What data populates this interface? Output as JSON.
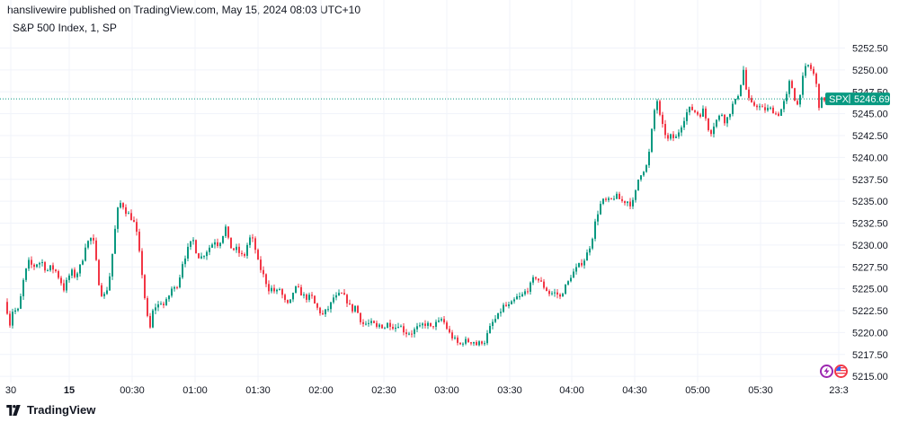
{
  "header": {
    "publish_line": "hanslivewire published on TradingView.com, May 15, 2024 08:03 UTC+10"
  },
  "legend": {
    "symbol_line": "S&P 500 Index, 1, SP"
  },
  "footer": {
    "brand": "TradingView"
  },
  "price_tag": {
    "symbol": "SPX",
    "value": "5246.69",
    "color": "#089981"
  },
  "colors": {
    "up": "#089981",
    "down": "#f23645",
    "grid": "#f0f3fa",
    "last_price_line": "#089981"
  },
  "chart_data": {
    "type": "candlestick",
    "title": "S&P 500 Index, 1, SP",
    "ylim": [
      5214.5,
      5254.5
    ],
    "y_ticks": [
      "5215.00",
      "5217.50",
      "5220.00",
      "5222.50",
      "5225.00",
      "5227.50",
      "5230.00",
      "5232.50",
      "5235.00",
      "5237.50",
      "5240.00",
      "5242.50",
      "5245.00",
      "5247.50",
      "5250.00",
      "5252.50"
    ],
    "x_ticks": [
      "30",
      "15",
      "00:30",
      "01:00",
      "01:30",
      "02:00",
      "02:30",
      "03:00",
      "03:30",
      "04:00",
      "04:30",
      "05:00",
      "05:30",
      "23:3"
    ],
    "last_price": 5246.69,
    "path": [
      [
        0,
        5221.5
      ],
      [
        4,
        5224.5
      ],
      [
        10,
        5223
      ],
      [
        14,
        5221
      ],
      [
        18,
        5223
      ],
      [
        22,
        5222
      ],
      [
        26,
        5224
      ],
      [
        30,
        5226.5
      ],
      [
        35,
        5228
      ],
      [
        40,
        5227.5
      ],
      [
        45,
        5228
      ],
      [
        50,
        5228
      ],
      [
        55,
        5227
      ],
      [
        60,
        5227.5
      ],
      [
        65,
        5227
      ],
      [
        70,
        5226
      ],
      [
        74,
        5225
      ],
      [
        78,
        5226
      ],
      [
        82,
        5227
      ],
      [
        86,
        5226.5
      ],
      [
        90,
        5227
      ],
      [
        94,
        5228
      ],
      [
        98,
        5230
      ],
      [
        102,
        5230.5
      ],
      [
        106,
        5231
      ],
      [
        110,
        5228
      ],
      [
        114,
        5225
      ],
      [
        118,
        5224
      ],
      [
        122,
        5225
      ],
      [
        126,
        5227
      ],
      [
        130,
        5231
      ],
      [
        134,
        5234
      ],
      [
        138,
        5235
      ],
      [
        142,
        5234
      ],
      [
        146,
        5233.5
      ],
      [
        150,
        5233
      ],
      [
        154,
        5232
      ],
      [
        158,
        5229
      ],
      [
        162,
        5226
      ],
      [
        166,
        5222
      ],
      [
        170,
        5220.5
      ],
      [
        174,
        5223
      ],
      [
        178,
        5223
      ],
      [
        182,
        5223.5
      ],
      [
        186,
        5223
      ],
      [
        190,
        5224
      ],
      [
        194,
        5225
      ],
      [
        198,
        5225
      ],
      [
        202,
        5226
      ],
      [
        206,
        5228
      ],
      [
        210,
        5229
      ],
      [
        214,
        5230
      ],
      [
        218,
        5230.5
      ],
      [
        222,
        5229
      ],
      [
        226,
        5228.5
      ],
      [
        230,
        5229
      ],
      [
        234,
        5229.5
      ],
      [
        238,
        5230
      ],
      [
        242,
        5230.5
      ],
      [
        246,
        5230
      ],
      [
        250,
        5231
      ],
      [
        254,
        5232
      ],
      [
        258,
        5230
      ],
      [
        262,
        5229.5
      ],
      [
        266,
        5229.5
      ],
      [
        270,
        5229
      ],
      [
        274,
        5228.5
      ],
      [
        278,
        5230
      ],
      [
        282,
        5231
      ],
      [
        286,
        5230
      ],
      [
        290,
        5228
      ],
      [
        294,
        5227
      ],
      [
        298,
        5226
      ],
      [
        302,
        5225
      ],
      [
        306,
        5225
      ],
      [
        310,
        5224.5
      ],
      [
        314,
        5225
      ],
      [
        318,
        5224
      ],
      [
        322,
        5223
      ],
      [
        326,
        5223.5
      ],
      [
        330,
        5225
      ],
      [
        334,
        5225
      ],
      [
        338,
        5224.5
      ],
      [
        342,
        5224
      ],
      [
        346,
        5224
      ],
      [
        350,
        5224
      ],
      [
        354,
        5223
      ],
      [
        358,
        5222.5
      ],
      [
        362,
        5222
      ],
      [
        366,
        5222.5
      ],
      [
        370,
        5223
      ],
      [
        374,
        5224
      ],
      [
        378,
        5224
      ],
      [
        382,
        5224.5
      ],
      [
        386,
        5224
      ],
      [
        390,
        5223.5
      ],
      [
        394,
        5222.5
      ],
      [
        398,
        5223
      ],
      [
        402,
        5222
      ],
      [
        406,
        5221
      ],
      [
        410,
        5221
      ],
      [
        414,
        5221
      ],
      [
        418,
        5221
      ],
      [
        422,
        5220.5
      ],
      [
        426,
        5221
      ],
      [
        430,
        5220.5
      ],
      [
        434,
        5221
      ],
      [
        438,
        5221
      ],
      [
        442,
        5220.5
      ],
      [
        446,
        5221
      ],
      [
        450,
        5220.5
      ],
      [
        454,
        5220
      ],
      [
        458,
        5220
      ],
      [
        462,
        5220
      ],
      [
        466,
        5220.5
      ],
      [
        470,
        5220.5
      ],
      [
        474,
        5221
      ],
      [
        478,
        5221
      ],
      [
        482,
        5220.5
      ],
      [
        486,
        5221
      ],
      [
        490,
        5221
      ],
      [
        494,
        5221.5
      ],
      [
        498,
        5221
      ],
      [
        502,
        5220
      ],
      [
        506,
        5219.5
      ],
      [
        510,
        5219
      ],
      [
        514,
        5218.5
      ],
      [
        518,
        5219
      ],
      [
        522,
        5219
      ],
      [
        526,
        5219
      ],
      [
        530,
        5219
      ],
      [
        534,
        5218.5
      ],
      [
        538,
        5219
      ],
      [
        542,
        5219
      ],
      [
        546,
        5220
      ],
      [
        550,
        5221
      ],
      [
        554,
        5221.5
      ],
      [
        558,
        5222
      ],
      [
        562,
        5223
      ],
      [
        566,
        5223
      ],
      [
        570,
        5223
      ],
      [
        574,
        5223.5
      ],
      [
        578,
        5224
      ],
      [
        582,
        5224
      ],
      [
        586,
        5224.5
      ],
      [
        590,
        5225
      ],
      [
        594,
        5225.5
      ],
      [
        598,
        5226.5
      ],
      [
        602,
        5226
      ],
      [
        606,
        5225.5
      ],
      [
        610,
        5225
      ],
      [
        614,
        5224.5
      ],
      [
        618,
        5224.5
      ],
      [
        622,
        5224.5
      ],
      [
        626,
        5224
      ],
      [
        630,
        5225
      ],
      [
        634,
        5225.5
      ],
      [
        638,
        5226.5
      ],
      [
        642,
        5227
      ],
      [
        646,
        5227.5
      ],
      [
        650,
        5228
      ],
      [
        654,
        5228.5
      ],
      [
        658,
        5229.5
      ],
      [
        662,
        5231
      ],
      [
        666,
        5233
      ],
      [
        670,
        5234.5
      ],
      [
        674,
        5235
      ],
      [
        678,
        5235
      ],
      [
        682,
        5235
      ],
      [
        686,
        5235.5
      ],
      [
        690,
        5235.5
      ],
      [
        694,
        5235
      ],
      [
        698,
        5235
      ],
      [
        702,
        5235
      ],
      [
        706,
        5234.5
      ],
      [
        710,
        5236
      ],
      [
        714,
        5238
      ],
      [
        718,
        5238.5
      ],
      [
        722,
        5239
      ],
      [
        726,
        5241
      ],
      [
        730,
        5245
      ],
      [
        734,
        5246.5
      ],
      [
        738,
        5244
      ],
      [
        742,
        5243
      ],
      [
        746,
        5242
      ],
      [
        750,
        5242.5
      ],
      [
        754,
        5242
      ],
      [
        758,
        5243
      ],
      [
        762,
        5244
      ],
      [
        766,
        5245
      ],
      [
        770,
        5245.5
      ],
      [
        774,
        5245.5
      ],
      [
        778,
        5245
      ],
      [
        782,
        5245
      ],
      [
        786,
        5245.5
      ],
      [
        790,
        5243.5
      ],
      [
        794,
        5243
      ],
      [
        798,
        5244
      ],
      [
        802,
        5244.5
      ],
      [
        806,
        5245
      ],
      [
        810,
        5244
      ],
      [
        814,
        5245
      ],
      [
        818,
        5246
      ],
      [
        822,
        5246.5
      ],
      [
        826,
        5248
      ],
      [
        830,
        5250
      ],
      [
        834,
        5247
      ],
      [
        838,
        5246
      ],
      [
        842,
        5246
      ],
      [
        846,
        5246
      ],
      [
        850,
        5245.5
      ],
      [
        854,
        5245.5
      ],
      [
        858,
        5245.5
      ],
      [
        862,
        5245.5
      ],
      [
        866,
        5245
      ],
      [
        870,
        5245
      ],
      [
        874,
        5246
      ],
      [
        878,
        5247
      ],
      [
        882,
        5249
      ],
      [
        886,
        5247
      ],
      [
        890,
        5246
      ],
      [
        894,
        5248
      ],
      [
        898,
        5250
      ],
      [
        902,
        5250.5
      ],
      [
        906,
        5250
      ],
      [
        910,
        5249
      ],
      [
        914,
        5246
      ],
      [
        918,
        5246.7
      ]
    ]
  }
}
